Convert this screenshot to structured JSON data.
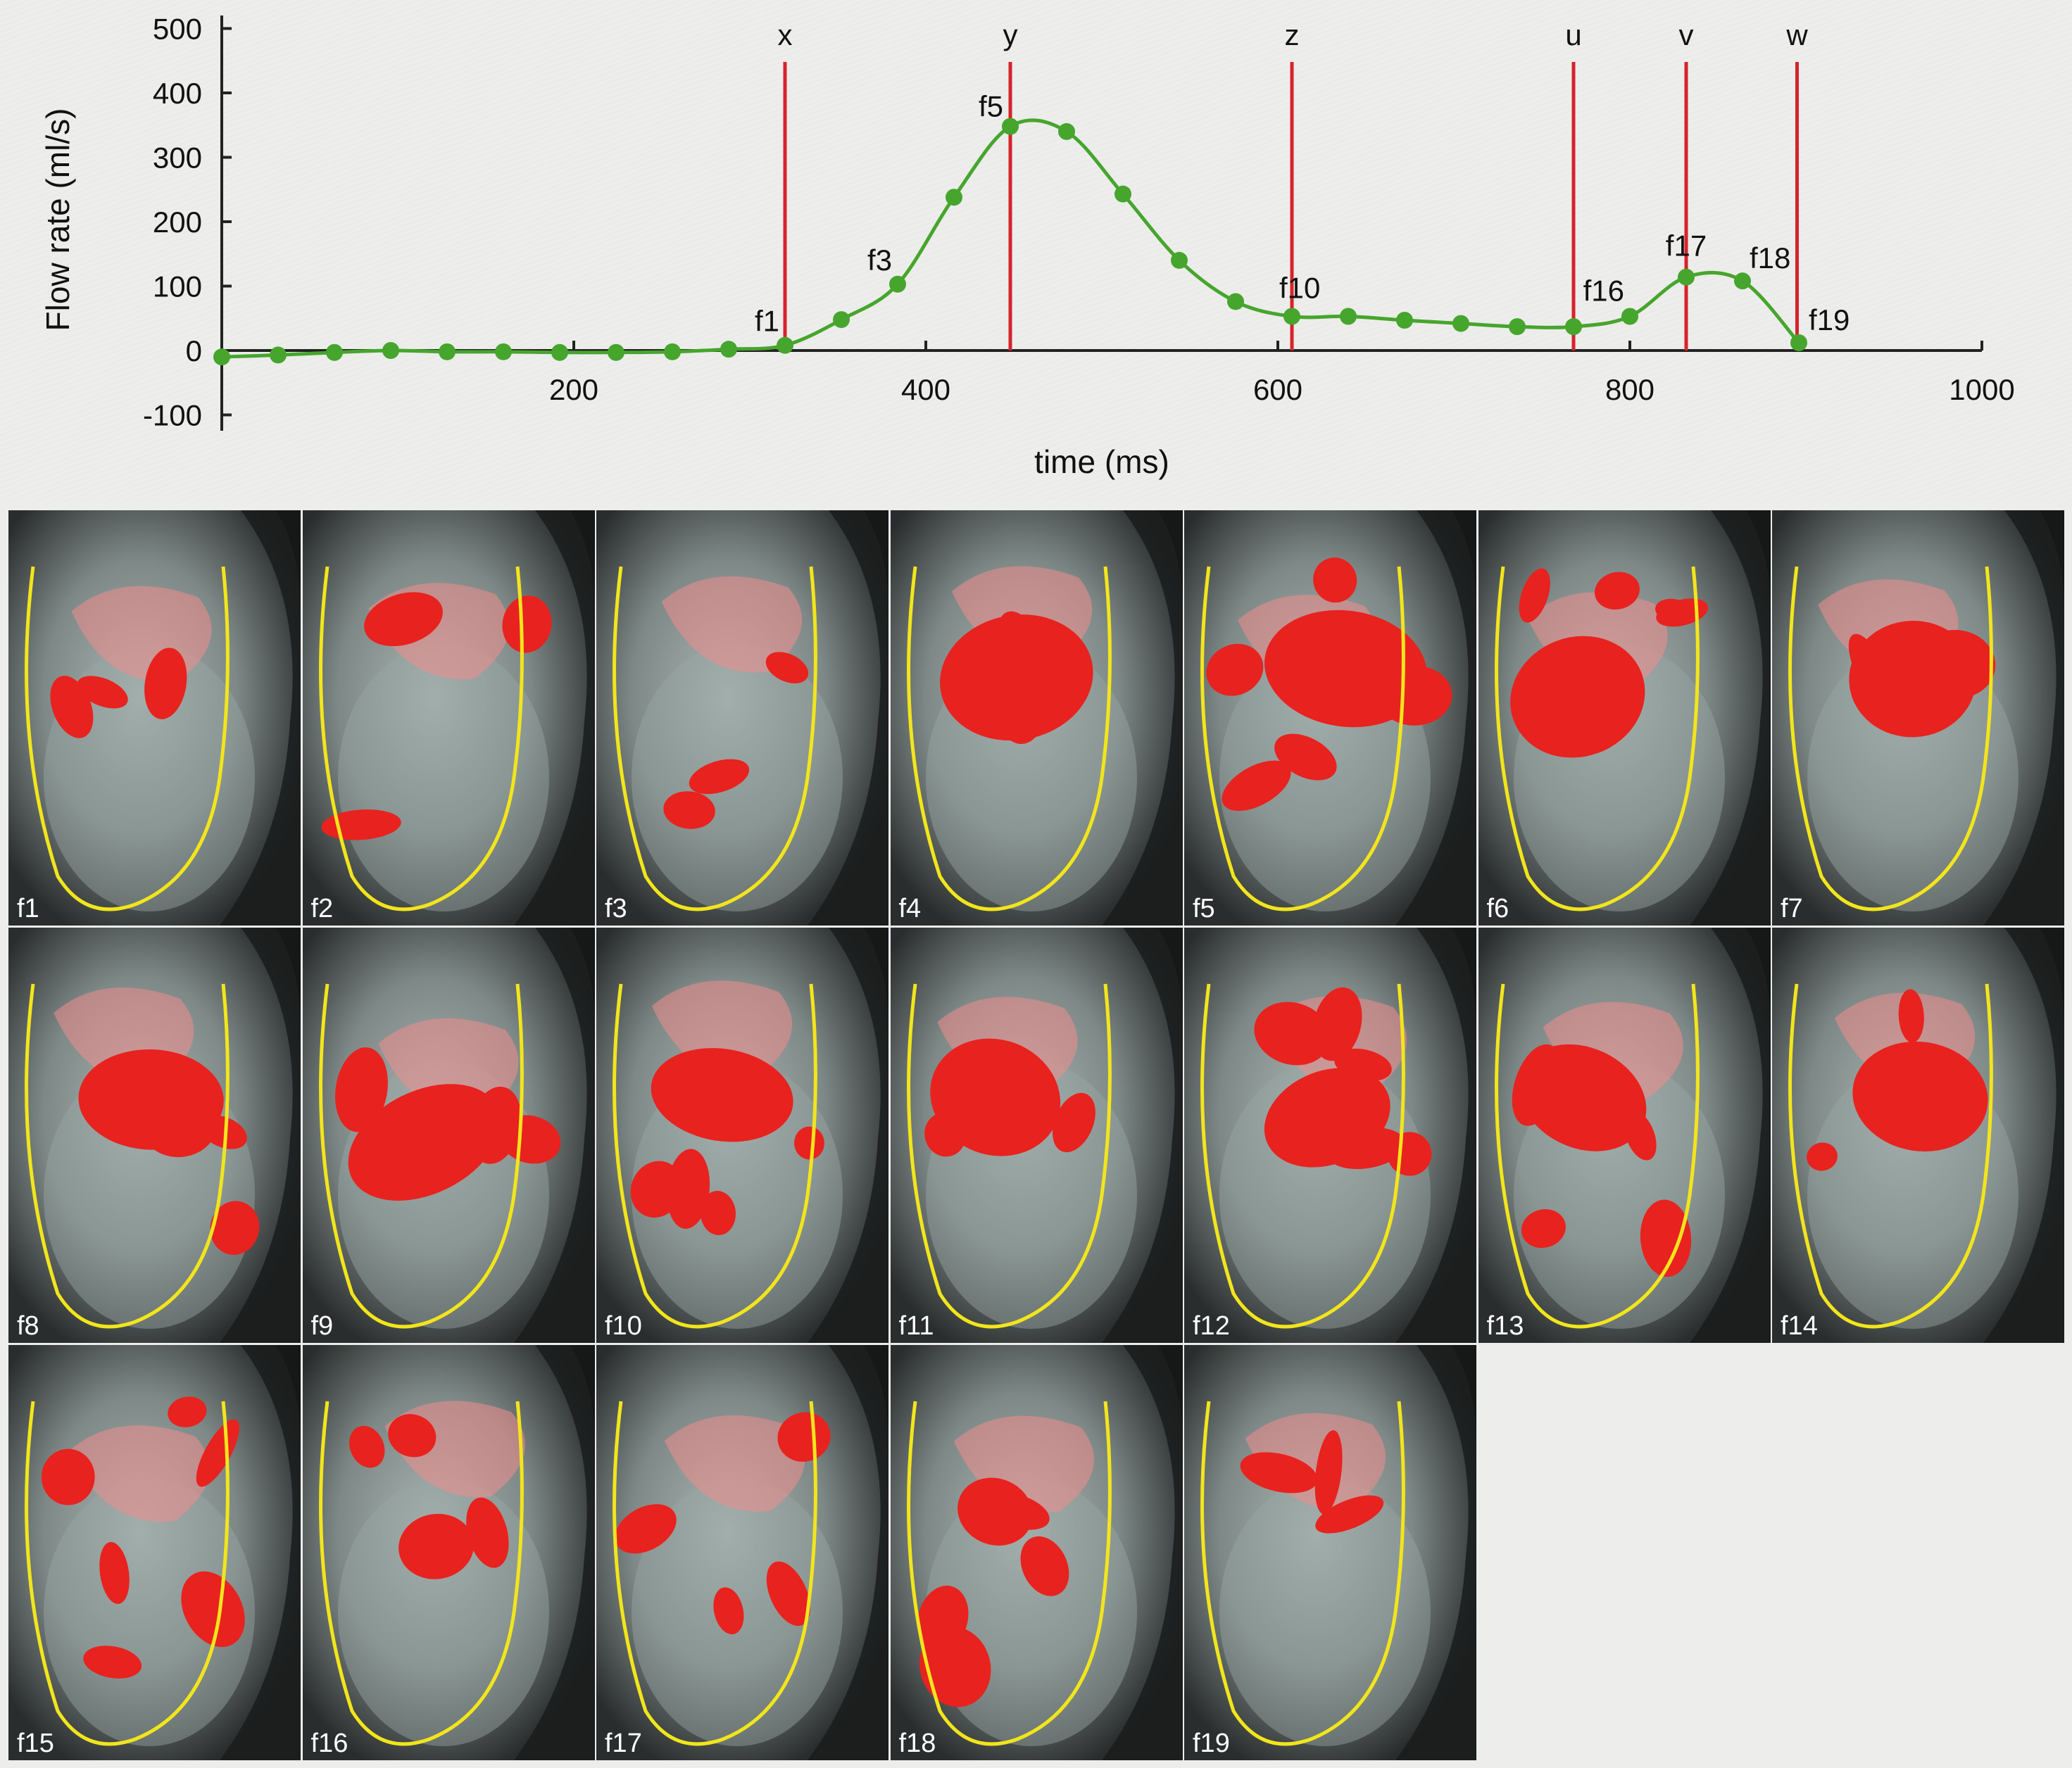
{
  "colors": {
    "background": "#ededeb",
    "curve": "#46a52d",
    "marker": "#d6242b",
    "axis": "#222222",
    "contour": "#f2e51c",
    "flow_solid": "#e8221e",
    "flow_translucent": "#f08c8c"
  },
  "chart_data": {
    "type": "line",
    "xlabel": "time (ms)",
    "ylabel": "Flow rate (ml/s)",
    "xlim": [
      0,
      1000
    ],
    "ylim": [
      -100,
      500
    ],
    "xticks": [
      200,
      400,
      600,
      800,
      1000
    ],
    "yticks": [
      500,
      400,
      300,
      200,
      100,
      0,
      -100
    ],
    "series": [
      {
        "name": "Flow rate",
        "x": [
          0,
          32,
          64,
          96,
          128,
          160,
          192,
          224,
          256,
          288,
          320,
          352,
          384,
          416,
          448,
          480,
          512,
          544,
          576,
          608,
          640,
          672,
          704,
          736,
          768,
          800,
          832,
          864,
          896
        ],
        "y": [
          -10,
          -7,
          -3,
          0,
          -2,
          -2,
          -3,
          -3,
          -2,
          2,
          8,
          48,
          103,
          238,
          348,
          340,
          243,
          140,
          76,
          53,
          53,
          47,
          42,
          37,
          37,
          53,
          114,
          108,
          12
        ]
      }
    ],
    "markers": [
      {
        "label": "x",
        "x": 320
      },
      {
        "label": "y",
        "x": 448
      },
      {
        "label": "z",
        "x": 608
      },
      {
        "label": "u",
        "x": 768
      },
      {
        "label": "v",
        "x": 832
      },
      {
        "label": "w",
        "x": 895
      }
    ],
    "point_labels": [
      {
        "text": "f1",
        "x": 320,
        "y": 8,
        "anchor": "end",
        "dx": -8,
        "dy": -20
      },
      {
        "text": "f3",
        "x": 384,
        "y": 103,
        "anchor": "end",
        "dx": -8,
        "dy": -20
      },
      {
        "text": "f5",
        "x": 448,
        "y": 348,
        "anchor": "end",
        "dx": -10,
        "dy": -14
      },
      {
        "text": "f10",
        "x": 608,
        "y": 53,
        "anchor": "start",
        "dx": -18,
        "dy": -26
      },
      {
        "text": "f16",
        "x": 800,
        "y": 53,
        "anchor": "end",
        "dx": -8,
        "dy": -22
      },
      {
        "text": "f17",
        "x": 832,
        "y": 114,
        "anchor": "middle",
        "dx": 0,
        "dy": -30
      },
      {
        "text": "f18",
        "x": 864,
        "y": 108,
        "anchor": "start",
        "dx": 10,
        "dy": -18
      },
      {
        "text": "f19",
        "x": 896,
        "y": 12,
        "anchor": "start",
        "dx": 14,
        "dy": -18
      }
    ]
  },
  "frames": [
    "f1",
    "f2",
    "f3",
    "f4",
    "f5",
    "f6",
    "f7",
    "f8",
    "f9",
    "f10",
    "f11",
    "f12",
    "f13",
    "f14",
    "f15",
    "f16",
    "f17",
    "f18",
    "f19"
  ]
}
